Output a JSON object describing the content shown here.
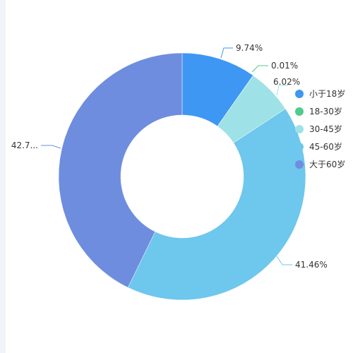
{
  "chart_data": {
    "type": "pie",
    "variant": "donut",
    "title": "",
    "legend_position": "right",
    "categories": [
      "小于18岁",
      "18-30岁",
      "30-45岁",
      "45-60岁",
      "大于60岁"
    ],
    "values": [
      9.74,
      0.01,
      6.02,
      41.46,
      42.77
    ],
    "labels": [
      "9.74%",
      "0.01%",
      "6.02%",
      "41.46%",
      "42.7..."
    ],
    "colors": [
      "#3e97f2",
      "#4fcb8a",
      "#9ee2e7",
      "#6ec7ec",
      "#6e8ddf"
    ]
  }
}
